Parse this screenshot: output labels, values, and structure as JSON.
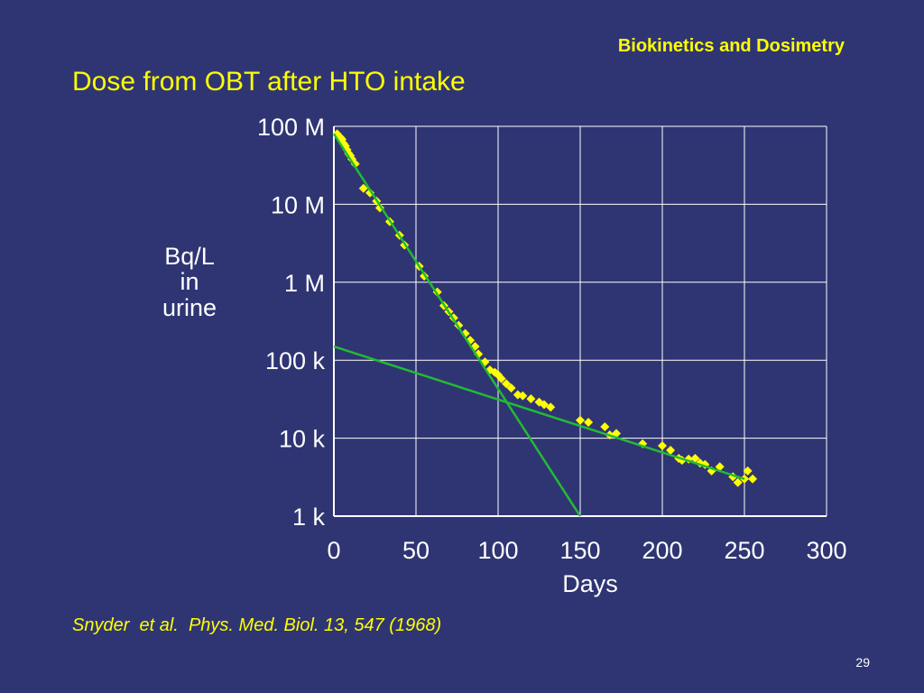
{
  "header": {
    "title": "Biokinetics and Dosimetry"
  },
  "slide": {
    "title": "Dose from OBT after HTO intake",
    "page_number": "29"
  },
  "citation": "Snyder  et al.  Phys. Med. Biol. 13, 547 (1968)",
  "colors": {
    "background": "#2f3573",
    "accent": "#ffff00",
    "fit_line": "#22bb33",
    "grid": "#ffffff"
  },
  "chart_data": {
    "type": "scatter",
    "title": "",
    "xlabel": "Days",
    "ylabel_lines": [
      "Bq/L",
      "in",
      "urine"
    ],
    "xlim": [
      0,
      300
    ],
    "ylim": [
      1000,
      100000000
    ],
    "yscale": "log",
    "grid": true,
    "xticks": [
      0,
      50,
      100,
      150,
      200,
      250,
      300
    ],
    "xtick_labels": [
      "0",
      "50",
      "100",
      "150",
      "200",
      "250",
      "300"
    ],
    "yticks": [
      1000,
      10000,
      100000,
      1000000,
      10000000,
      100000000
    ],
    "ytick_labels": [
      "1 k",
      "10 k",
      "100 k",
      "1 M",
      "10 M",
      "100 M"
    ],
    "series": [
      {
        "type": "scatter",
        "color": "#ffff00",
        "marker": "diamond",
        "points": [
          [
            2,
            80000000
          ],
          [
            4,
            72000000
          ],
          [
            5,
            68000000
          ],
          [
            6,
            60000000
          ],
          [
            7,
            56000000
          ],
          [
            8,
            50000000
          ],
          [
            9,
            45000000
          ],
          [
            10,
            42000000
          ],
          [
            11,
            38000000
          ],
          [
            13,
            33000000
          ],
          [
            18,
            16000000
          ],
          [
            22,
            14000000
          ],
          [
            26,
            11000000
          ],
          [
            28,
            9000000
          ],
          [
            34,
            6000000
          ],
          [
            40,
            4000000
          ],
          [
            43,
            3000000
          ],
          [
            52,
            1600000
          ],
          [
            55,
            1200000
          ],
          [
            63,
            750000
          ],
          [
            67,
            500000
          ],
          [
            70,
            420000
          ],
          [
            73,
            350000
          ],
          [
            76,
            280000
          ],
          [
            80,
            220000
          ],
          [
            83,
            180000
          ],
          [
            86,
            150000
          ],
          [
            88,
            120000
          ],
          [
            92,
            95000
          ],
          [
            95,
            75000
          ],
          [
            98,
            70000
          ],
          [
            100,
            65000
          ],
          [
            102,
            58000
          ],
          [
            105,
            50000
          ],
          [
            108,
            44000
          ],
          [
            112,
            36000
          ],
          [
            115,
            35000
          ],
          [
            120,
            32000
          ],
          [
            125,
            29000
          ],
          [
            128,
            27000
          ],
          [
            132,
            25000
          ],
          [
            150,
            17000
          ],
          [
            155,
            16000
          ],
          [
            165,
            14000
          ],
          [
            168,
            11000
          ],
          [
            172,
            11500
          ],
          [
            188,
            8500
          ],
          [
            200,
            8000
          ],
          [
            205,
            7000
          ],
          [
            210,
            5500
          ],
          [
            212,
            5200
          ],
          [
            216,
            5400
          ],
          [
            220,
            5500
          ],
          [
            223,
            4800
          ],
          [
            226,
            4600
          ],
          [
            230,
            3800
          ],
          [
            235,
            4300
          ],
          [
            243,
            3200
          ],
          [
            246,
            2700
          ],
          [
            250,
            3000
          ],
          [
            252,
            3800
          ],
          [
            255,
            3000
          ]
        ]
      }
    ],
    "fit_lines": [
      {
        "color": "#22bb33",
        "points": [
          [
            0,
            80000000
          ],
          [
            150,
            1000
          ]
        ]
      },
      {
        "color": "#22bb33",
        "points": [
          [
            0,
            150000
          ],
          [
            250,
            3000
          ]
        ]
      }
    ]
  }
}
